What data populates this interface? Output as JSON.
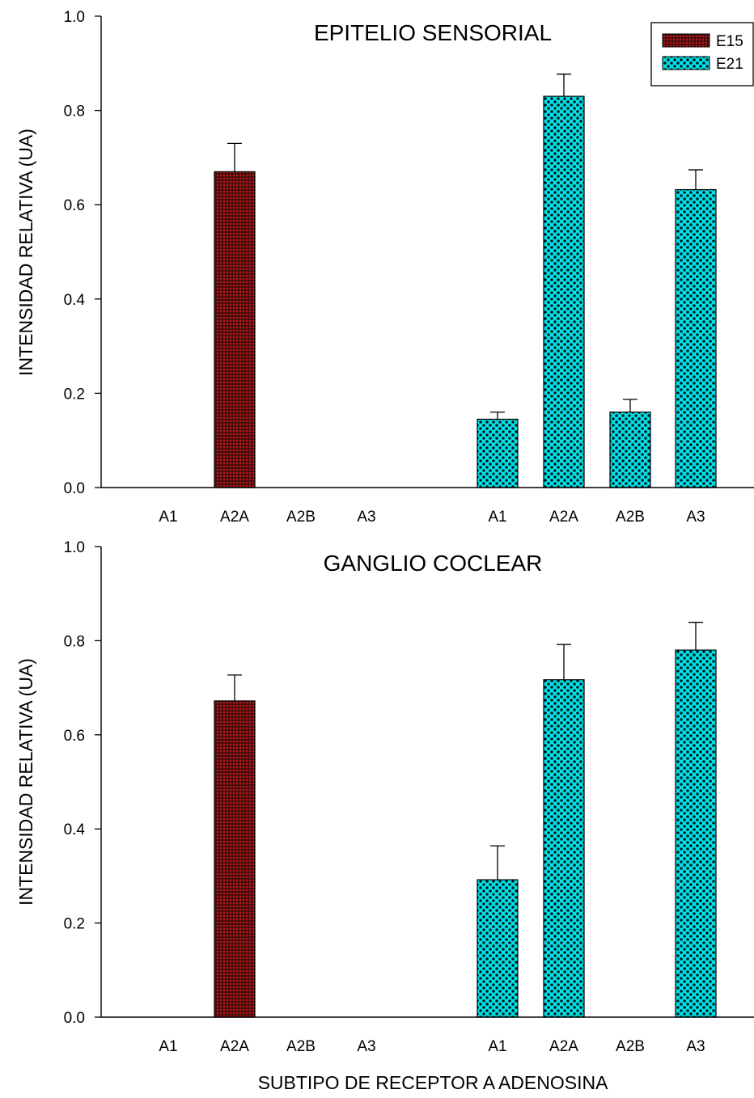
{
  "figure": {
    "xlabel": "SUBTIPO DE RECEPTOR A ADENOSINA"
  },
  "legend": {
    "entries": [
      {
        "label": "E15",
        "series_id": "E15"
      },
      {
        "label": "E21",
        "series_id": "E21"
      }
    ],
    "placement": "top-right"
  },
  "colors": {
    "E15_fill": "#4a0d0d",
    "E15_dots": "#c81a1a",
    "E21_fill": "#00e2ea",
    "E21_dots": "#001a1a",
    "axis": "#000000"
  },
  "chart_data": [
    {
      "type": "bar",
      "title": "EPITELIO SENSORIAL",
      "ylabel": "INTENSIDAD RELATIVA (UA)",
      "xlabel": "",
      "ylim": [
        0,
        1.0
      ],
      "yticks": [
        "0.0",
        "0.2",
        "0.4",
        "0.6",
        "0.8",
        "1.0"
      ],
      "grid": false,
      "groups": [
        {
          "series": "E15",
          "categories": [
            "A1",
            "A2A",
            "A2B",
            "A3"
          ],
          "values": [
            0,
            0.67,
            0,
            0
          ],
          "errors": [
            0,
            0.06,
            0,
            0
          ]
        },
        {
          "series": "E21",
          "categories": [
            "A1",
            "A2A",
            "A2B",
            "A3"
          ],
          "values": [
            0.145,
            0.83,
            0.16,
            0.632
          ],
          "errors": [
            0.015,
            0.047,
            0.027,
            0.042
          ]
        }
      ]
    },
    {
      "type": "bar",
      "title": "GANGLIO COCLEAR",
      "ylabel": "INTENSIDAD RELATIVA (UA)",
      "xlabel": "SUBTIPO DE RECEPTOR A ADENOSINA",
      "ylim": [
        0,
        1.0
      ],
      "yticks": [
        "0.0",
        "0.2",
        "0.4",
        "0.6",
        "0.8",
        "1.0"
      ],
      "grid": false,
      "groups": [
        {
          "series": "E15",
          "categories": [
            "A1",
            "A2A",
            "A2B",
            "A3"
          ],
          "values": [
            0,
            0.672,
            0,
            0
          ],
          "errors": [
            0,
            0.055,
            0,
            0
          ]
        },
        {
          "series": "E21",
          "categories": [
            "A1",
            "A2A",
            "A2B",
            "A3"
          ],
          "values": [
            0.292,
            0.717,
            0,
            0.78
          ],
          "errors": [
            0.072,
            0.075,
            0,
            0.059
          ]
        }
      ]
    }
  ]
}
